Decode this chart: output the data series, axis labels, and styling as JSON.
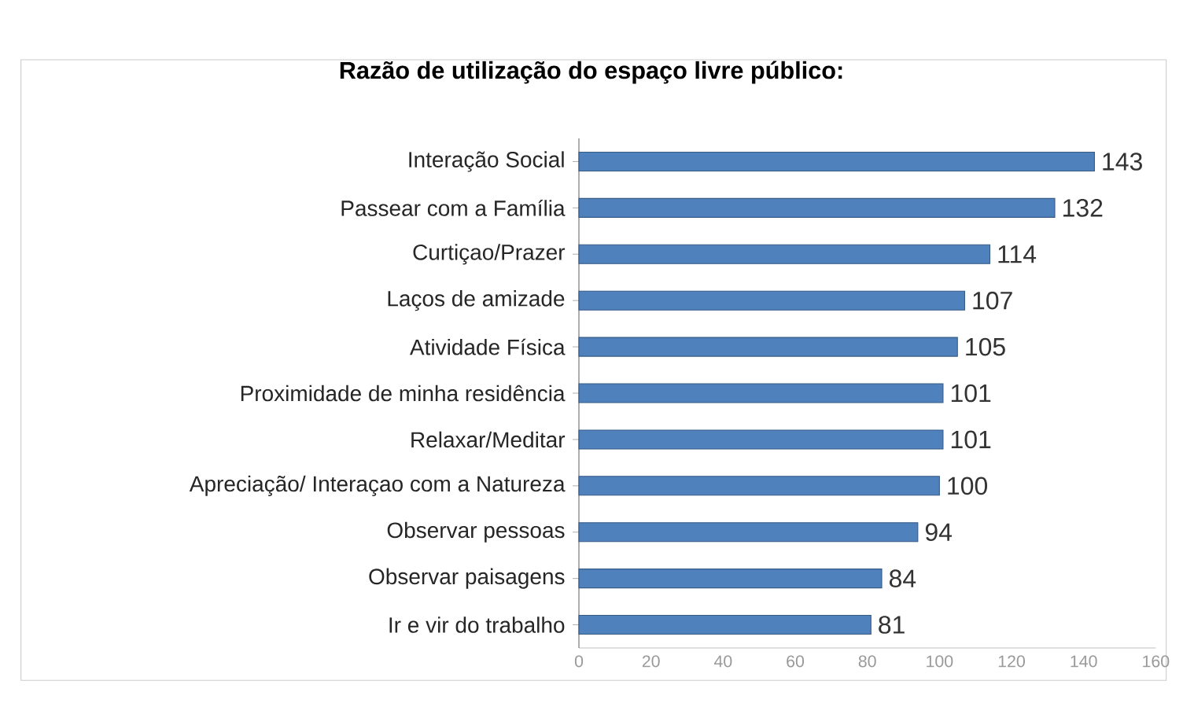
{
  "chart_data": {
    "type": "bar",
    "orientation": "horizontal",
    "title": "Razão de utilização do espaço livre público:",
    "categories": [
      "Interação Social",
      "Passear com a Família",
      "Curtiçao/Prazer",
      "Laços de amizade",
      "Atividade Física",
      "Proximidade de minha residência",
      "Relaxar/Meditar",
      "Apreciação/ Interaçao com a Natureza",
      "Observar pessoas",
      "Observar paisagens",
      "Ir e vir do trabalho"
    ],
    "values": [
      143,
      132,
      114,
      107,
      105,
      101,
      101,
      100,
      94,
      84,
      81
    ],
    "color": "#4f81bd",
    "data_labels": true,
    "xlim": [
      0,
      160
    ],
    "xticks": [
      0,
      20,
      40,
      60,
      80,
      100,
      120,
      140,
      160
    ]
  }
}
